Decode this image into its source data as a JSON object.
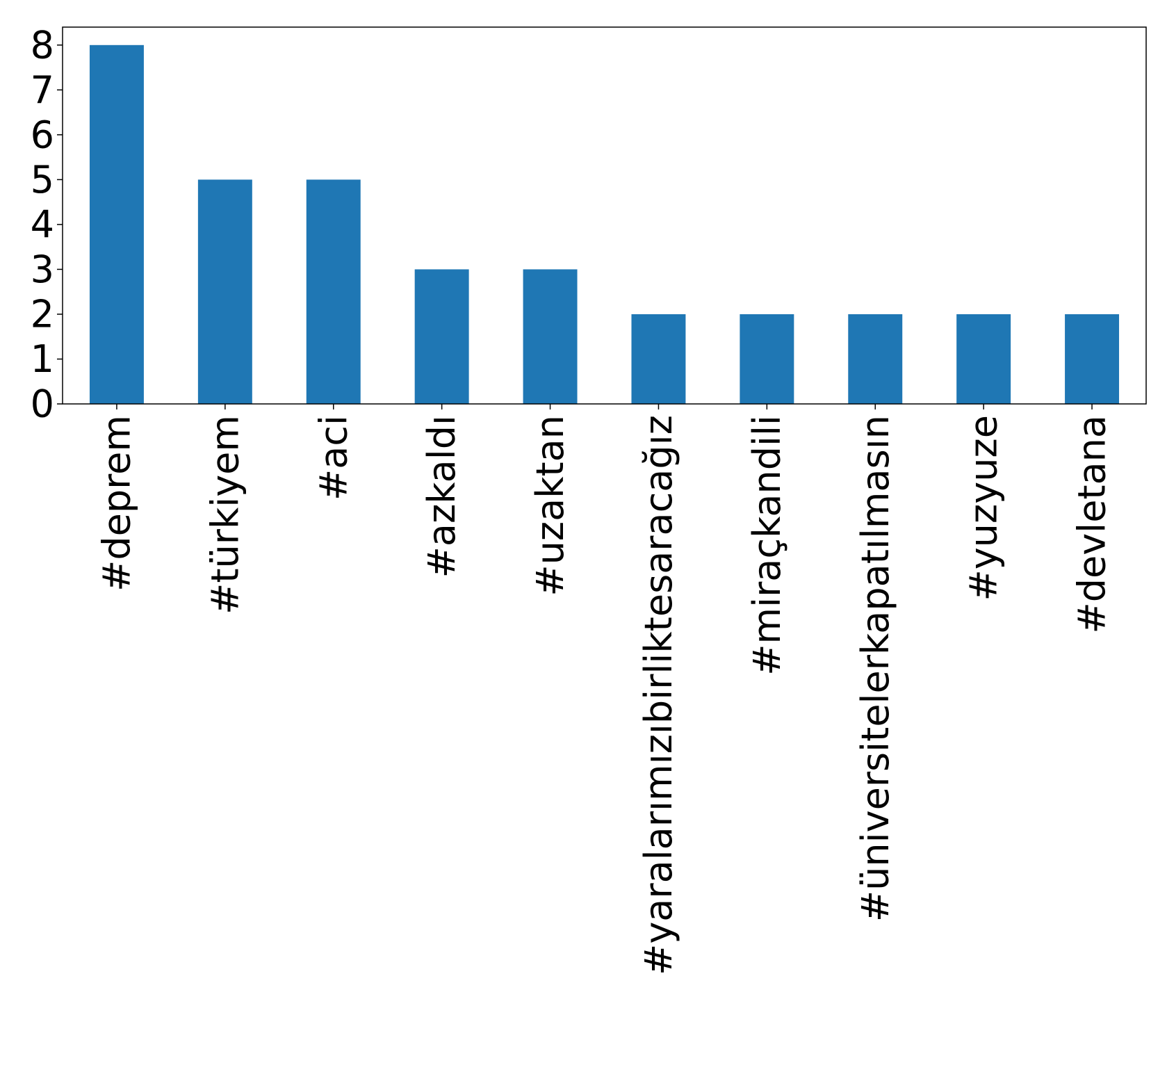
{
  "chart_data": {
    "type": "bar",
    "title": "",
    "xlabel": "",
    "ylabel": "",
    "categories": [
      "#deprem",
      "#türkiyem",
      "#aci",
      "#azkaldı",
      "#uzaktan",
      "#yaralarımızıbirliktesaracağız",
      "#miraçkandili",
      "#üniversitelerkapatılmasın",
      "#yuzyuze",
      "#devletana"
    ],
    "values": [
      8,
      5,
      5,
      3,
      3,
      2,
      2,
      2,
      2,
      2
    ],
    "ylim": [
      0,
      8.4
    ],
    "yticks": [
      "0",
      "1",
      "2",
      "3",
      "4",
      "5",
      "6",
      "7",
      "8"
    ],
    "bar_color": "#1f77b4",
    "grid": false,
    "legend": "none"
  }
}
